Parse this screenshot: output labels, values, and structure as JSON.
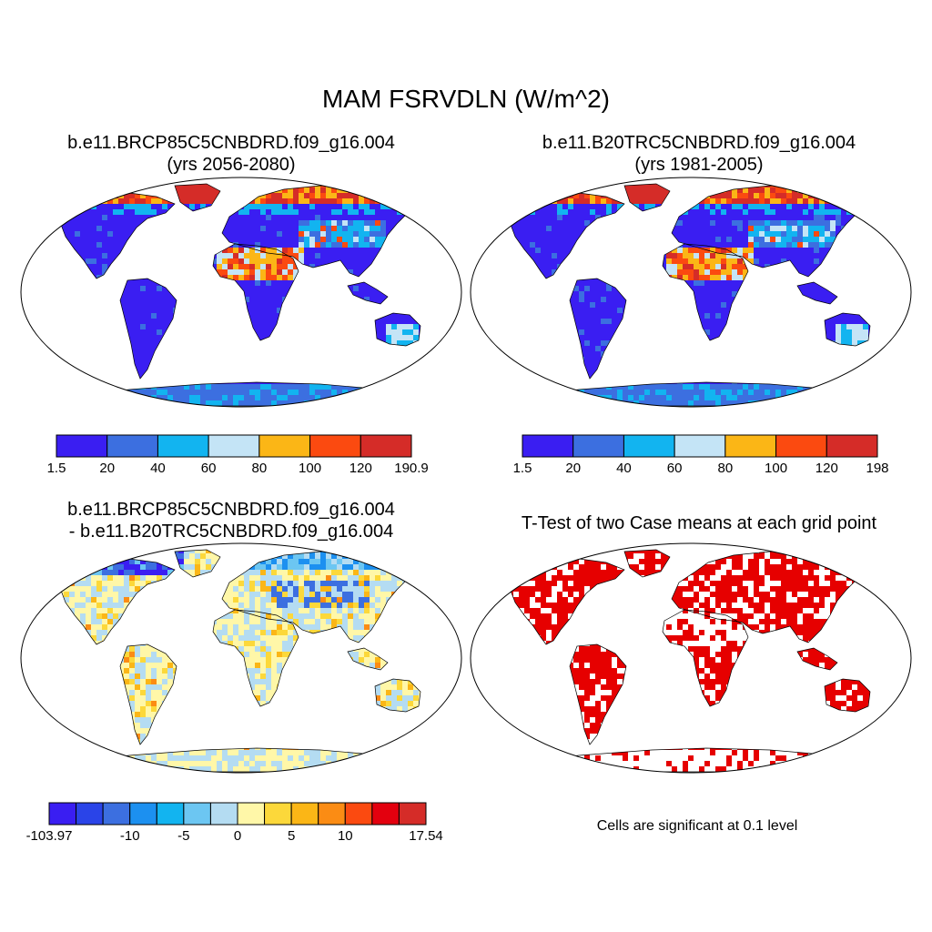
{
  "figure": {
    "title": "MAM FSRVDLN (W/m^2)",
    "land_color_hint": "#3a20f0"
  },
  "panels": {
    "top_left": {
      "title_line1": "b.e11.BRCP85C5CNBDRD.f09_g16.004",
      "title_line2": "(yrs 2056-2080)",
      "colorbar": {
        "colors": [
          "#3a1ef2",
          "#3c6fe0",
          "#12b4f0",
          "#c4e4f6",
          "#fbb616",
          "#fb4a10",
          "#d52c28"
        ],
        "labels": [
          "1.5",
          "20",
          "40",
          "60",
          "80",
          "100",
          "120",
          "190.9"
        ]
      }
    },
    "top_right": {
      "title_line1": "b.e11.B20TRC5CNBDRD.f09_g16.004",
      "title_line2": "(yrs 1981-2005)",
      "colorbar": {
        "colors": [
          "#3a1ef2",
          "#3c6fe0",
          "#12b4f0",
          "#c4e4f6",
          "#fbb616",
          "#fb4a10",
          "#d52c28"
        ],
        "labels": [
          "1.5",
          "20",
          "40",
          "60",
          "80",
          "100",
          "120",
          "198"
        ]
      }
    },
    "bottom_left": {
      "title_line1": "b.e11.BRCP85C5CNBDRD.f09_g16.004",
      "title_line2": "- b.e11.B20TRC5CNBDRD.f09_g16.004",
      "colorbar": {
        "colors": [
          "#3a1ef2",
          "#2a44e8",
          "#3c6fe0",
          "#1c90f0",
          "#12b4f0",
          "#6cc6f2",
          "#b4dcf2",
          "#fff7a8",
          "#fcd83a",
          "#fbb616",
          "#fb8c14",
          "#fb4a10",
          "#e3000e",
          "#d52c28"
        ],
        "labels": [
          "-103.97",
          "-10",
          "-5",
          "0",
          "5",
          "10",
          "17.54"
        ]
      }
    },
    "bottom_right": {
      "title": "T-Test of two Case means at each grid point",
      "note": "Cells are significant at 0.1 level",
      "significance_color": "#e60000"
    }
  }
}
